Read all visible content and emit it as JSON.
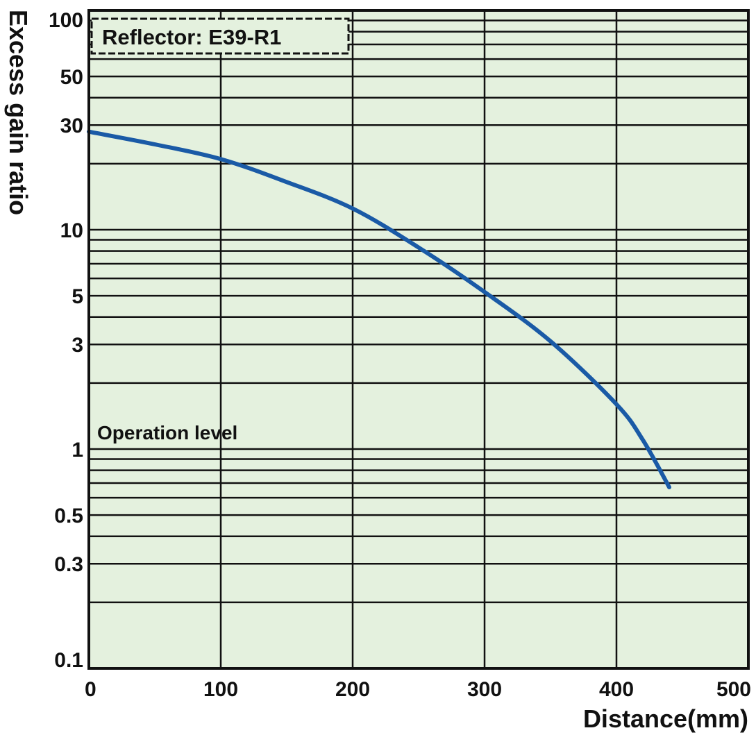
{
  "chart_data": {
    "type": "line",
    "title": "",
    "xlabel": "Distance(mm)",
    "ylabel": "Excess gain ratio",
    "xlim": [
      0,
      500
    ],
    "ylim": [
      0.1,
      100
    ],
    "y_scale": "log",
    "grid": true,
    "x_ticks": [
      0,
      100,
      200,
      300,
      400,
      500
    ],
    "x_tick_labels": [
      "0",
      "100",
      "200",
      "300",
      "400",
      "500"
    ],
    "y_ticks": [
      0.1,
      0.3,
      0.5,
      1,
      3,
      5,
      10,
      30,
      50,
      100
    ],
    "y_tick_labels": [
      "0.1",
      "0.3",
      "0.5",
      "1",
      "3",
      "5",
      "10",
      "30",
      "50",
      "100"
    ],
    "legend": "Reflector: E39-R1",
    "legend_position": "top-left",
    "annotations": [
      {
        "text": "Operation level",
        "y": 1
      }
    ],
    "background_color": "#e4f1de",
    "series_color": "#1a5aa6",
    "series": [
      {
        "x": [
          0,
          50,
          100,
          150,
          200,
          250,
          300,
          350,
          400,
          420,
          440
        ],
        "values": [
          28,
          24.5,
          21,
          16.5,
          12.5,
          8.3,
          5.2,
          3.1,
          1.6,
          1.1,
          0.67
        ]
      }
    ]
  }
}
